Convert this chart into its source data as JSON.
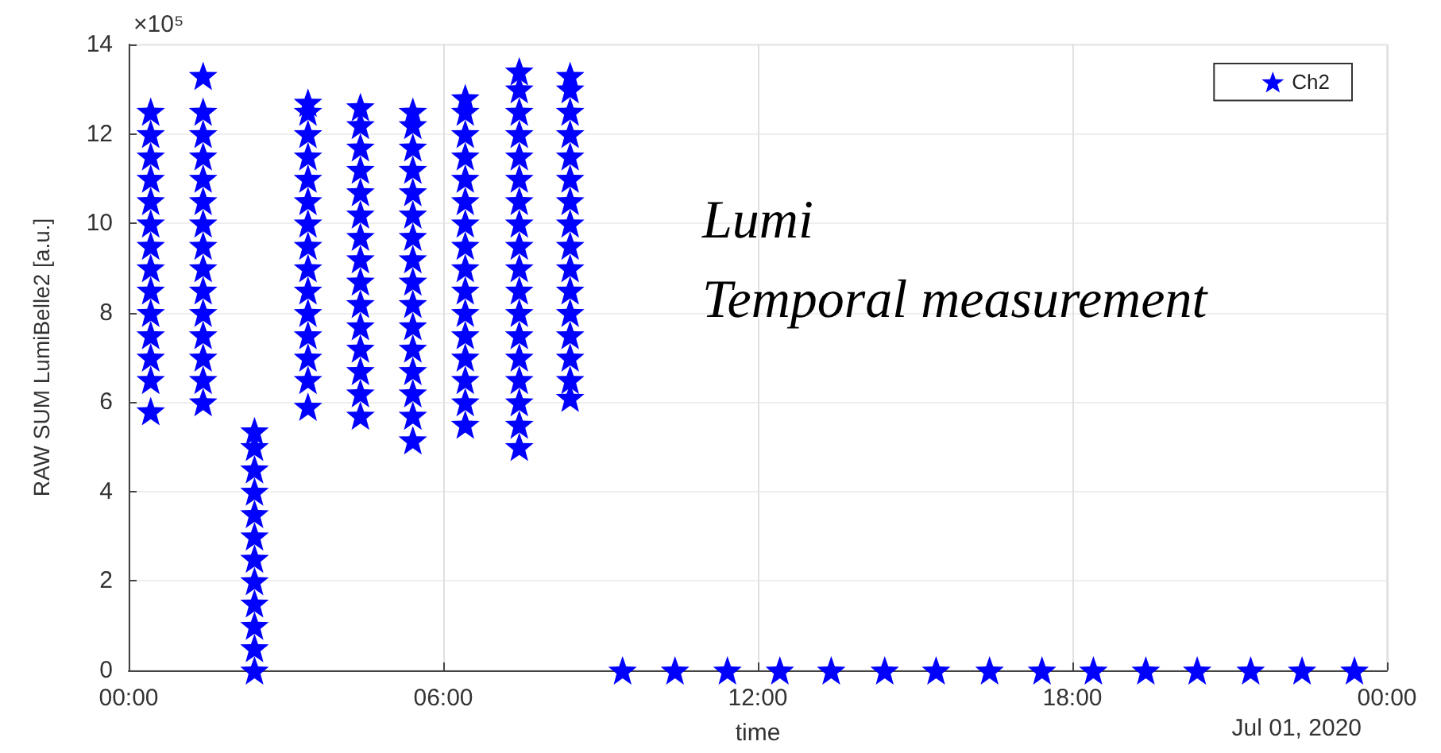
{
  "chart_data": {
    "type": "scatter",
    "xlabel": "time",
    "ylabel": "RAW SUM LumiBelle2 [a.u.]",
    "annotations": [
      "×10⁵",
      "Lumi",
      "Temporal measurement",
      "Jul 01, 2020"
    ],
    "xlim": [
      0,
      24
    ],
    "xticks": [
      {
        "value": 0,
        "label": "00:00"
      },
      {
        "value": 6,
        "label": "06:00"
      },
      {
        "value": 12,
        "label": "12:00"
      },
      {
        "value": 18,
        "label": "18:00"
      },
      {
        "value": 24,
        "label": "00:00"
      }
    ],
    "ylim": [
      0,
      14
    ],
    "yticks": [
      0,
      2,
      4,
      6,
      8,
      10,
      12,
      14
    ],
    "grid": true,
    "legend": "top right",
    "marker": "star",
    "series": [
      {
        "name": "Ch2",
        "color": "#0000ff",
        "x": [
          0.42,
          0.42,
          0.42,
          0.42,
          0.42,
          0.42,
          0.42,
          0.42,
          0.42,
          0.42,
          0.42,
          0.42,
          0.42,
          0.42,
          1.42,
          1.42,
          1.42,
          1.42,
          1.42,
          1.42,
          1.42,
          1.42,
          1.42,
          1.42,
          1.42,
          1.42,
          1.42,
          1.42,
          1.42,
          2.4,
          2.4,
          2.4,
          2.4,
          2.4,
          2.4,
          2.4,
          2.4,
          2.4,
          2.4,
          2.4,
          2.4,
          3.42,
          3.42,
          3.42,
          3.42,
          3.42,
          3.42,
          3.42,
          3.42,
          3.42,
          3.42,
          3.42,
          3.42,
          3.42,
          3.42,
          3.42,
          4.42,
          4.42,
          4.42,
          4.42,
          4.42,
          4.42,
          4.42,
          4.42,
          4.42,
          4.42,
          4.42,
          4.42,
          4.42,
          4.42,
          4.42,
          5.42,
          5.42,
          5.42,
          5.42,
          5.42,
          5.42,
          5.42,
          5.42,
          5.42,
          5.42,
          5.42,
          5.42,
          5.42,
          5.42,
          5.42,
          5.42,
          6.42,
          6.42,
          6.42,
          6.42,
          6.42,
          6.42,
          6.42,
          6.42,
          6.42,
          6.42,
          6.42,
          6.42,
          6.42,
          6.42,
          6.42,
          6.42,
          7.45,
          7.45,
          7.45,
          7.45,
          7.45,
          7.45,
          7.45,
          7.45,
          7.45,
          7.45,
          7.45,
          7.45,
          7.45,
          7.45,
          7.45,
          7.45,
          7.45,
          7.45,
          8.42,
          8.42,
          8.42,
          8.42,
          8.42,
          8.42,
          8.42,
          8.42,
          8.42,
          8.42,
          8.42,
          8.42,
          8.42,
          8.42,
          8.42,
          8.42,
          9.42,
          10.42,
          11.42,
          12.42,
          13.4,
          14.42,
          15.4,
          16.42,
          17.42,
          18.4,
          19.4,
          20.38,
          21.4,
          22.38,
          23.38
        ],
        "values": [
          5.8,
          6.5,
          7,
          7.5,
          8,
          8.5,
          9,
          9.5,
          10,
          10.5,
          11,
          11.5,
          12,
          12.5,
          6,
          6.5,
          7,
          7.5,
          8,
          8.5,
          9,
          9.5,
          10,
          10.5,
          11,
          11.5,
          12,
          12.5,
          13.3,
          0,
          0.5,
          1,
          1.5,
          2,
          2.5,
          3,
          3.5,
          4,
          4.5,
          5,
          5.35,
          5.9,
          6.5,
          7,
          7.5,
          8,
          8.5,
          9,
          9.5,
          10,
          10.5,
          11,
          11.5,
          12,
          12.5,
          12.7,
          5.7,
          6.2,
          6.7,
          7.2,
          7.7,
          8.2,
          8.7,
          9.2,
          9.7,
          10.2,
          10.7,
          11.2,
          11.7,
          12.2,
          12.6,
          5.15,
          5.7,
          6.2,
          6.7,
          7.2,
          7.7,
          8.2,
          8.7,
          9.2,
          9.7,
          10.2,
          10.7,
          11.2,
          11.7,
          12.2,
          12.5,
          5.5,
          6,
          6.5,
          7,
          7.5,
          8,
          8.5,
          9,
          9.5,
          10,
          10.5,
          11,
          11.5,
          12,
          12.5,
          12.8,
          5,
          5.5,
          6,
          6.5,
          7,
          7.5,
          8,
          8.5,
          9,
          9.5,
          10,
          10.5,
          11,
          11.5,
          12,
          12.5,
          13,
          13.4,
          6.1,
          6.5,
          7,
          7.5,
          8,
          8.5,
          9,
          9.5,
          10,
          10.5,
          11,
          11.5,
          12,
          12.5,
          13,
          13.3,
          0,
          0,
          0,
          0,
          0,
          0,
          0,
          0,
          0,
          0,
          0,
          0,
          0,
          0,
          0
        ]
      }
    ]
  }
}
